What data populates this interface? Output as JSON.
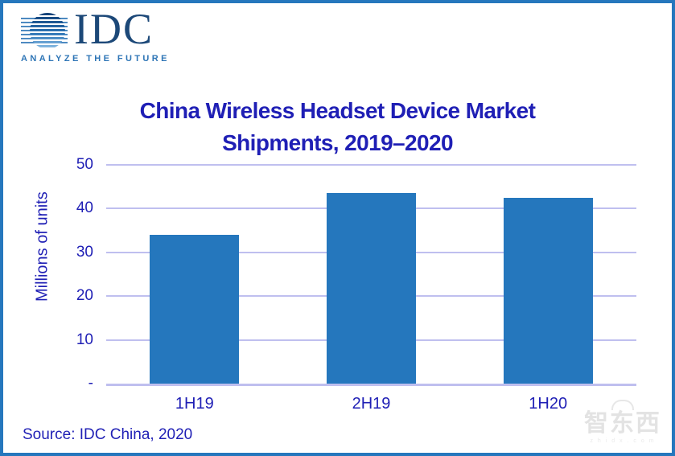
{
  "logo": {
    "name": "IDC",
    "tagline": "ANALYZE THE FUTURE"
  },
  "title": {
    "line1": "China Wireless Headset Device Market",
    "line2": "Shipments, 2019–2020"
  },
  "chart_data": {
    "type": "bar",
    "title": "China Wireless Headset Device Market Shipments, 2019–2020",
    "categories": [
      "1H19",
      "2H19",
      "1H20"
    ],
    "values": [
      34,
      43.5,
      42.5
    ],
    "xlabel": "",
    "ylabel": "Millions of units",
    "ylim": [
      0,
      50
    ],
    "ytick_interval": 10,
    "ytick_labels": [
      "-",
      "10",
      "20",
      "30",
      "40",
      "50"
    ],
    "grid": true,
    "legend": "none",
    "bar_color": "#2577BD",
    "gridline_color": "#BFBFEF",
    "axis_text_color": "#1F1FB5"
  },
  "source": "Source: IDC China, 2020",
  "watermark": {
    "text": "智东西",
    "subtext": "z h i d x . c o m"
  },
  "colors": {
    "page_border": "#2577BD",
    "title_text": "#1F1FB5",
    "idc_navy": "#1C4878",
    "tagline_blue": "#2E75B6"
  }
}
